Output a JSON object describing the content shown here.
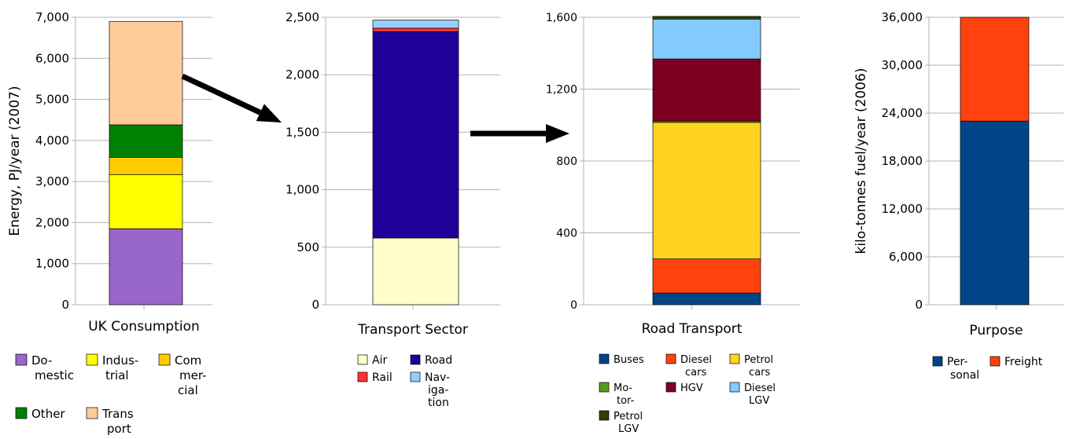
{
  "chart_data": [
    {
      "type": "bar",
      "stacked": true,
      "categories": [
        "UK Consumption"
      ],
      "xlabel": "UK Consumption",
      "ylabel": "Energy, PJ/year (2007)",
      "ylim": [
        0,
        7000
      ],
      "yticks": [
        0,
        1000,
        2000,
        3000,
        4000,
        5000,
        6000,
        7000
      ],
      "ytick_labels": [
        "0",
        "1,000",
        "2,000",
        "3,000",
        "4,000",
        "5,000",
        "6,000",
        "7,000"
      ],
      "grid": true,
      "series": [
        {
          "name": "Domestic",
          "legend": [
            "Do-",
            "mestic"
          ],
          "value": 1850,
          "color": "#9966cc"
        },
        {
          "name": "Industrial",
          "legend": [
            "Indus-",
            "trial"
          ],
          "value": 1320,
          "color": "#ffff00"
        },
        {
          "name": "Commercial",
          "legend": [
            "Com",
            "mer-",
            "cial"
          ],
          "value": 420,
          "color": "#ffcc00"
        },
        {
          "name": "Other",
          "legend": [
            "Other"
          ],
          "value": 790,
          "color": "#008000"
        },
        {
          "name": "Transport",
          "legend": [
            "Trans",
            "port"
          ],
          "value": 2520,
          "color": "#ffcc99"
        }
      ]
    },
    {
      "type": "bar",
      "stacked": true,
      "categories": [
        "Transport Sector"
      ],
      "xlabel": "Transport Sector",
      "ylabel": "",
      "ylim": [
        0,
        2500
      ],
      "yticks": [
        0,
        500,
        1000,
        1500,
        2000,
        2500
      ],
      "ytick_labels": [
        "0",
        "500",
        "1,000",
        "1,500",
        "2,000",
        "2,500"
      ],
      "grid": true,
      "series": [
        {
          "name": "Air",
          "legend": [
            "Air"
          ],
          "value": 580,
          "color": "#ffffcc"
        },
        {
          "name": "Road",
          "legend": [
            "Road"
          ],
          "value": 1795,
          "color": "#1f0099"
        },
        {
          "name": "Rail",
          "legend": [
            "Rail"
          ],
          "value": 30,
          "color": "#ff3333"
        },
        {
          "name": "Navigation",
          "legend": [
            "Nav-",
            "iga-",
            "tion"
          ],
          "value": 70,
          "color": "#99ccff"
        }
      ]
    },
    {
      "type": "bar",
      "stacked": true,
      "categories": [
        "Road Transport"
      ],
      "xlabel": "Road Transport",
      "ylabel": "",
      "ylim": [
        0,
        1600
      ],
      "yticks": [
        0,
        400,
        800,
        1200,
        1600
      ],
      "ytick_labels": [
        "0",
        "400",
        "800",
        "1,200",
        "1,600"
      ],
      "grid": true,
      "series": [
        {
          "name": "Buses",
          "legend": [
            "Buses"
          ],
          "value": 65,
          "color": "#004586"
        },
        {
          "name": "Diesel cars",
          "legend": [
            "Diesel",
            "cars"
          ],
          "value": 190,
          "color": "#ff420e"
        },
        {
          "name": "Petrol cars",
          "legend": [
            "Petrol",
            "cars"
          ],
          "value": 760,
          "color": "#ffd320"
        },
        {
          "name": "Motor-Petrol LGV",
          "legend": [
            "Mo-",
            "tor-"
          ],
          "value": 8,
          "color": "#579d1c"
        },
        {
          "name": "HGV",
          "legend": [
            "HGV"
          ],
          "value": 345,
          "color": "#7e0021"
        },
        {
          "name": "Diesel LGV",
          "legend": [
            "Diesel",
            "LGV"
          ],
          "value": 222,
          "color": "#83caff"
        },
        {
          "name": "Petrol LGV",
          "legend": [
            "Petrol",
            "LGV"
          ],
          "value": 15,
          "color": "#314004"
        }
      ]
    },
    {
      "type": "bar",
      "stacked": true,
      "categories": [
        "Purpose"
      ],
      "xlabel": "Purpose",
      "ylabel": "kilo-tonnes fuel/year (2006)",
      "ylim": [
        0,
        36000
      ],
      "yticks": [
        0,
        6000,
        12000,
        18000,
        24000,
        30000,
        36000
      ],
      "ytick_labels": [
        "0",
        "6,000",
        "12,000",
        "18,000",
        "24,000",
        "30,000",
        "36,000"
      ],
      "grid": true,
      "series": [
        {
          "name": "Personal",
          "legend": [
            "Per-",
            "sonal"
          ],
          "value": 23000,
          "color": "#004586"
        },
        {
          "name": "Freight",
          "legend": [
            "Freight"
          ],
          "value": 13000,
          "color": "#ff420e"
        }
      ]
    }
  ]
}
